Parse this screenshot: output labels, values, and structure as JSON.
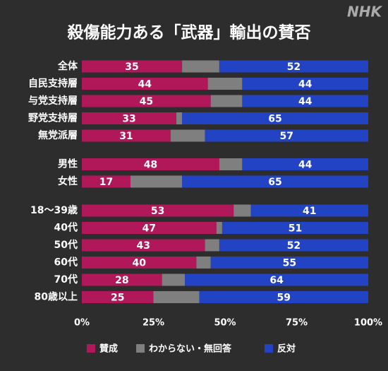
{
  "chart_data": {
    "type": "stacked_bar_horizontal",
    "title": "殺傷能力ある「武器」輸出の賛否",
    "logo": "NHK",
    "categories": [
      "全体",
      "自民支持層",
      "与党支持層",
      "野党支持層",
      "無党派層",
      "男性",
      "女性",
      "18～39歳",
      "40代",
      "50代",
      "60代",
      "70代",
      "80歳以上"
    ],
    "series": [
      {
        "name": "賛成",
        "color": "#b0185a",
        "values": [
          35,
          44,
          45,
          33,
          31,
          48,
          17,
          53,
          47,
          43,
          40,
          28,
          25
        ],
        "show_labels": true
      },
      {
        "name": "わからない・無回答",
        "color": "#7f7f7f",
        "values": [
          13,
          12,
          11,
          2,
          12,
          8,
          18,
          6,
          2,
          5,
          5,
          8,
          16
        ],
        "show_labels": false
      },
      {
        "name": "反対",
        "color": "#2244c4",
        "values": [
          52,
          44,
          44,
          65,
          57,
          44,
          65,
          41,
          51,
          52,
          55,
          64,
          59
        ],
        "show_labels": true
      }
    ],
    "xlim": [
      0,
      100
    ],
    "xticks": [
      {
        "value": 0,
        "label": "0%"
      },
      {
        "value": 25,
        "label": "25%"
      },
      {
        "value": 50,
        "label": "50%"
      },
      {
        "value": 75,
        "label": "75%"
      },
      {
        "value": 100,
        "label": "100%"
      }
    ],
    "legend": "bottom"
  }
}
